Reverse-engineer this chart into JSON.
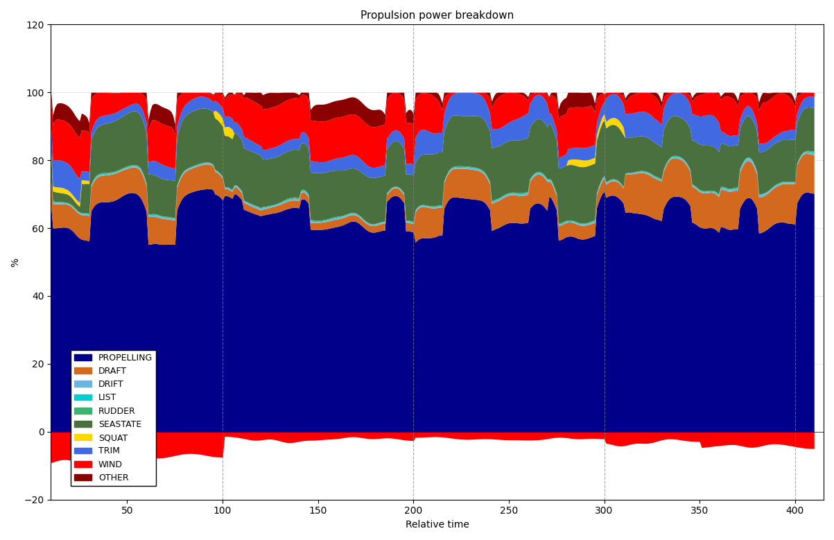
{
  "title": "Propulsion power breakdown",
  "xlabel": "Relative time",
  "ylabel": "%",
  "xlim": [
    10,
    415
  ],
  "ylim": [
    -20,
    120
  ],
  "yticks": [
    -20,
    0,
    20,
    40,
    60,
    80,
    100,
    120
  ],
  "xticks": [
    50,
    100,
    150,
    200,
    250,
    300,
    350,
    400
  ],
  "vlines": [
    100,
    200,
    300,
    400
  ],
  "n_points": 410,
  "colors": {
    "PROPELLING": "#00008B",
    "DRAFT": "#D2691E",
    "DRIFT": "#6CB4E4",
    "LIST": "#00CED1",
    "RUDDER": "#3CB371",
    "SEASTATE": "#4A7040",
    "SQUAT": "#FFD700",
    "TRIM": "#4169E1",
    "WIND": "#FF0000",
    "OTHER": "#8B0000"
  },
  "background_color": "#ffffff",
  "title_fontsize": 11,
  "label_fontsize": 10,
  "tick_fontsize": 10
}
